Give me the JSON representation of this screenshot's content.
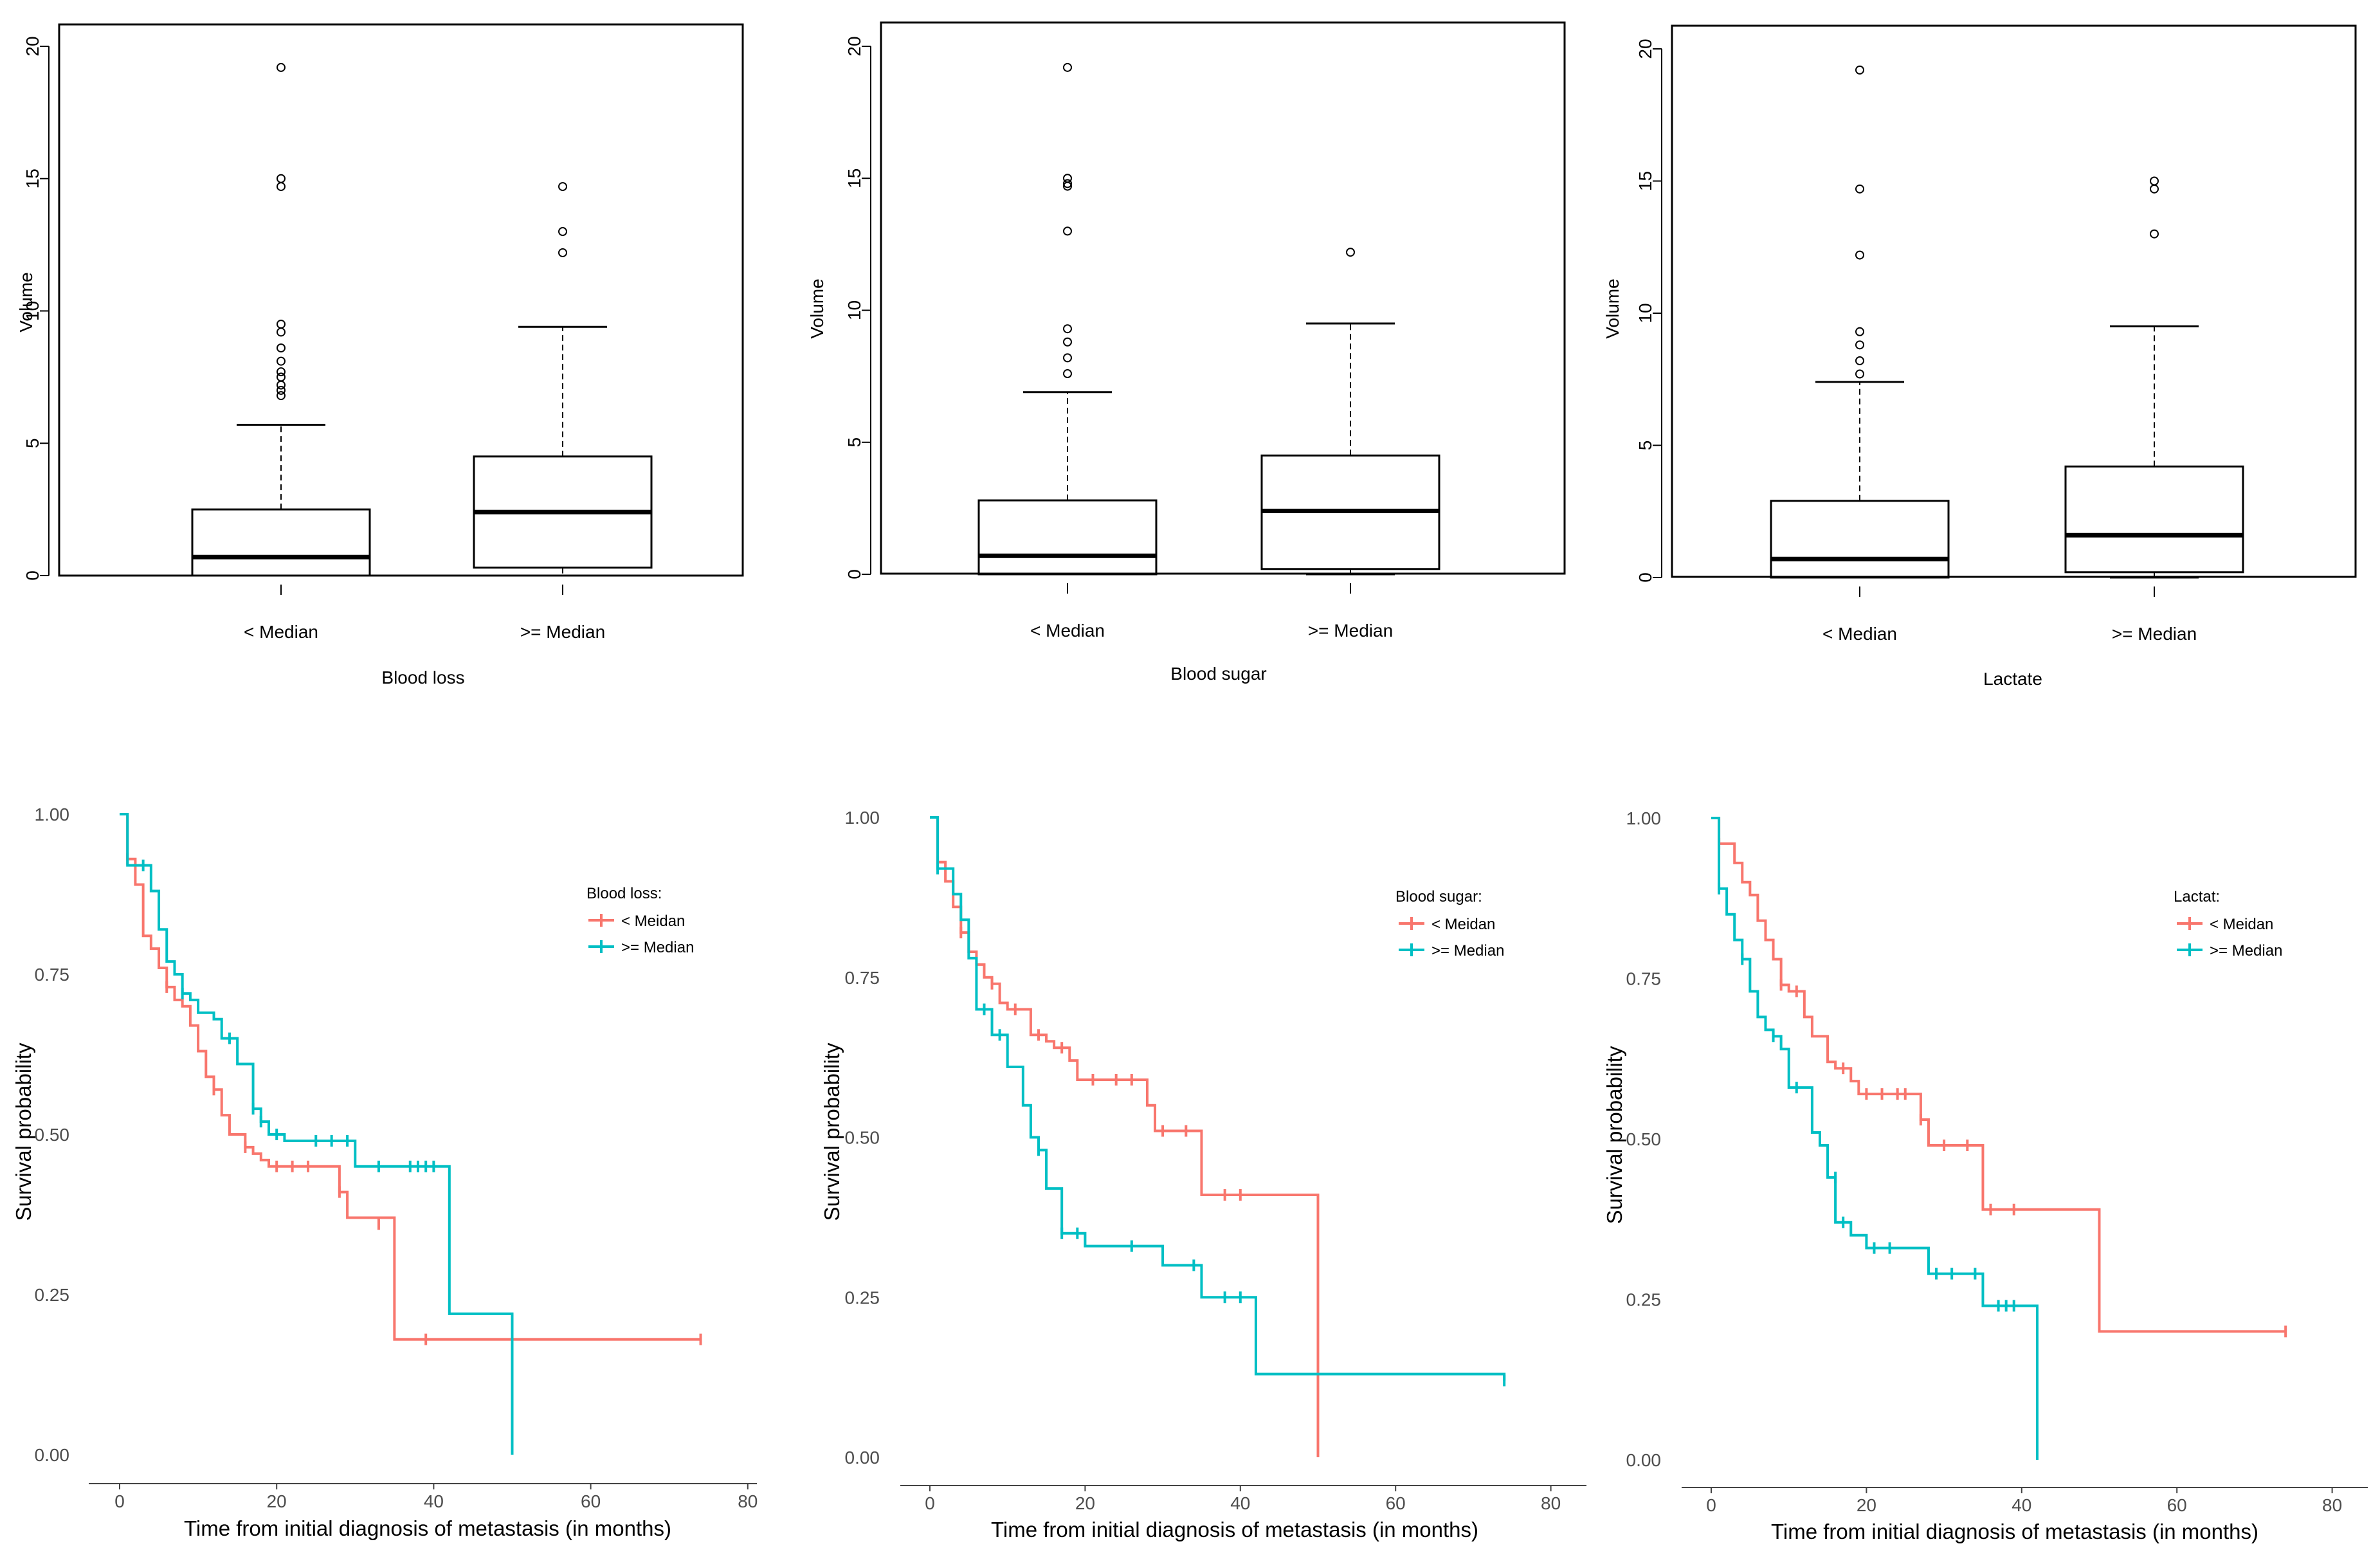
{
  "colors": {
    "red": "#F8766D",
    "cyan": "#00BFC4",
    "box_line": "#000000",
    "km_axis_text": "#4D4D4D"
  },
  "chart_data": [
    {
      "type": "box",
      "ylabel": "Volume",
      "xlabel": "Blood loss",
      "ylim": [
        0,
        20
      ],
      "yticks": [
        0,
        5,
        10,
        15,
        20
      ],
      "categories": [
        "< Median",
        ">= Median"
      ],
      "boxes": [
        {
          "lower_whisker": 0,
          "q1": 0,
          "median": 0.7,
          "q3": 2.5,
          "upper_whisker": 5.7,
          "outliers": [
            6.8,
            7.0,
            7.2,
            7.5,
            7.7,
            8.1,
            8.6,
            9.2,
            9.5,
            14.7,
            15.0,
            19.2
          ]
        },
        {
          "lower_whisker": 0,
          "q1": 0.3,
          "median": 2.4,
          "q3": 4.5,
          "upper_whisker": 9.4,
          "outliers": [
            12.2,
            13.0,
            14.7
          ]
        }
      ]
    },
    {
      "type": "box",
      "ylabel": "Volume",
      "xlabel": "Blood sugar",
      "ylim": [
        0,
        20
      ],
      "yticks": [
        0,
        5,
        10,
        15,
        20
      ],
      "categories": [
        "< Median",
        ">= Median"
      ],
      "boxes": [
        {
          "lower_whisker": 0,
          "q1": 0,
          "median": 0.7,
          "q3": 2.8,
          "upper_whisker": 6.9,
          "outliers": [
            7.6,
            8.2,
            8.8,
            9.3,
            13.0,
            14.7,
            14.8,
            15.0,
            19.2
          ]
        },
        {
          "lower_whisker": 0,
          "q1": 0.2,
          "median": 2.4,
          "q3": 4.5,
          "upper_whisker": 9.5,
          "outliers": [
            12.2
          ]
        }
      ]
    },
    {
      "type": "box",
      "ylabel": "Volume",
      "xlabel": "Lactate",
      "ylim": [
        0,
        20
      ],
      "yticks": [
        0,
        5,
        10,
        15,
        20
      ],
      "categories": [
        "< Median",
        ">= Median"
      ],
      "boxes": [
        {
          "lower_whisker": 0,
          "q1": 0,
          "median": 0.7,
          "q3": 2.9,
          "upper_whisker": 7.4,
          "outliers": [
            7.7,
            8.2,
            8.8,
            9.3,
            12.2,
            14.7,
            19.2
          ]
        },
        {
          "lower_whisker": 0,
          "q1": 0.2,
          "median": 1.6,
          "q3": 4.2,
          "upper_whisker": 9.5,
          "outliers": [
            13.0,
            14.7,
            15.0
          ]
        }
      ]
    },
    {
      "type": "line",
      "subtype": "kaplan-meier",
      "xlabel": "Time from initial diagnosis of metastasis (in months)",
      "ylabel": "Survival probability",
      "xlim": [
        0,
        80
      ],
      "ylim": [
        0,
        1
      ],
      "xticks": [
        0,
        20,
        40,
        60,
        80
      ],
      "yticks": [
        "0.00",
        "0.25",
        "0.50",
        "0.75",
        "1.00"
      ],
      "legend_title": "Blood loss:",
      "legend_position": "right",
      "series": [
        {
          "name": "< Meidan",
          "steps": [
            [
              0,
              1.0
            ],
            [
              1,
              0.93
            ],
            [
              2,
              0.89
            ],
            [
              3,
              0.81
            ],
            [
              4,
              0.79
            ],
            [
              5,
              0.76
            ],
            [
              6,
              0.73
            ],
            [
              7,
              0.71
            ],
            [
              8,
              0.7
            ],
            [
              9,
              0.67
            ],
            [
              10,
              0.63
            ],
            [
              11,
              0.59
            ],
            [
              12,
              0.57
            ],
            [
              13,
              0.53
            ],
            [
              14,
              0.5
            ],
            [
              16,
              0.48
            ],
            [
              17,
              0.47
            ],
            [
              18,
              0.46
            ],
            [
              19,
              0.45
            ],
            [
              28,
              0.41
            ],
            [
              29,
              0.37
            ],
            [
              35,
              0.18
            ],
            [
              74,
              0.18
            ]
          ],
          "censors": [
            [
              1,
              0.93
            ],
            [
              6,
              0.73
            ],
            [
              12,
              0.57
            ],
            [
              16,
              0.48
            ],
            [
              20,
              0.45
            ],
            [
              22,
              0.45
            ],
            [
              24,
              0.45
            ],
            [
              28,
              0.41
            ],
            [
              33,
              0.36
            ],
            [
              39,
              0.18
            ],
            [
              74,
              0.18
            ]
          ]
        },
        {
          "name": ">= Median",
          "steps": [
            [
              0,
              1.0
            ],
            [
              1,
              0.92
            ],
            [
              4,
              0.88
            ],
            [
              5,
              0.82
            ],
            [
              6,
              0.77
            ],
            [
              7,
              0.75
            ],
            [
              8,
              0.72
            ],
            [
              9,
              0.71
            ],
            [
              10,
              0.69
            ],
            [
              12,
              0.68
            ],
            [
              13,
              0.65
            ],
            [
              15,
              0.61
            ],
            [
              17,
              0.54
            ],
            [
              18,
              0.52
            ],
            [
              19,
              0.5
            ],
            [
              21,
              0.49
            ],
            [
              30,
              0.45
            ],
            [
              42,
              0.22
            ],
            [
              50,
              0.0
            ]
          ],
          "censors": [
            [
              3,
              0.92
            ],
            [
              8,
              0.72
            ],
            [
              14,
              0.65
            ],
            [
              17,
              0.54
            ],
            [
              18,
              0.52
            ],
            [
              20,
              0.5
            ],
            [
              25,
              0.49
            ],
            [
              27,
              0.49
            ],
            [
              29,
              0.49
            ],
            [
              33,
              0.45
            ],
            [
              37,
              0.45
            ],
            [
              38,
              0.45
            ],
            [
              39,
              0.45
            ],
            [
              40,
              0.45
            ]
          ]
        }
      ]
    },
    {
      "type": "line",
      "subtype": "kaplan-meier",
      "xlabel": "Time from initial diagnosis of metastasis (in months)",
      "ylabel": "Survival probability",
      "xlim": [
        0,
        80
      ],
      "ylim": [
        0,
        1
      ],
      "xticks": [
        0,
        20,
        40,
        60,
        80
      ],
      "yticks": [
        "0.00",
        "0.25",
        "0.50",
        "0.75",
        "1.00"
      ],
      "legend_title": "Blood sugar:",
      "legend_position": "right",
      "series": [
        {
          "name": "< Meidan",
          "steps": [
            [
              0,
              1.0
            ],
            [
              1,
              0.93
            ],
            [
              2,
              0.9
            ],
            [
              3,
              0.86
            ],
            [
              4,
              0.82
            ],
            [
              5,
              0.79
            ],
            [
              6,
              0.77
            ],
            [
              7,
              0.75
            ],
            [
              8,
              0.74
            ],
            [
              9,
              0.71
            ],
            [
              10,
              0.7
            ],
            [
              13,
              0.66
            ],
            [
              15,
              0.65
            ],
            [
              16,
              0.64
            ],
            [
              18,
              0.62
            ],
            [
              19,
              0.59
            ],
            [
              28,
              0.55
            ],
            [
              29,
              0.51
            ],
            [
              35,
              0.41
            ],
            [
              50,
              0.0
            ]
          ],
          "censors": [
            [
              1,
              0.93
            ],
            [
              4,
              0.82
            ],
            [
              8,
              0.74
            ],
            [
              11,
              0.7
            ],
            [
              14,
              0.66
            ],
            [
              17,
              0.64
            ],
            [
              21,
              0.59
            ],
            [
              24,
              0.59
            ],
            [
              26,
              0.59
            ],
            [
              30,
              0.51
            ],
            [
              33,
              0.51
            ],
            [
              38,
              0.41
            ],
            [
              40,
              0.41
            ]
          ]
        },
        {
          "name": ">= Median",
          "steps": [
            [
              0,
              1.0
            ],
            [
              1,
              0.92
            ],
            [
              3,
              0.88
            ],
            [
              4,
              0.84
            ],
            [
              5,
              0.78
            ],
            [
              6,
              0.7
            ],
            [
              8,
              0.66
            ],
            [
              10,
              0.61
            ],
            [
              12,
              0.55
            ],
            [
              13,
              0.5
            ],
            [
              14,
              0.48
            ],
            [
              15,
              0.42
            ],
            [
              17,
              0.35
            ],
            [
              20,
              0.33
            ],
            [
              30,
              0.3
            ],
            [
              35,
              0.25
            ],
            [
              42,
              0.13
            ],
            [
              74,
              0.12
            ]
          ],
          "censors": [
            [
              1,
              0.92
            ],
            [
              7,
              0.7
            ],
            [
              9,
              0.66
            ],
            [
              14,
              0.48
            ],
            [
              17,
              0.35
            ],
            [
              19,
              0.35
            ],
            [
              26,
              0.33
            ],
            [
              34,
              0.3
            ],
            [
              38,
              0.25
            ],
            [
              40,
              0.25
            ],
            [
              74,
              0.12
            ]
          ]
        }
      ]
    },
    {
      "type": "line",
      "subtype": "kaplan-meier",
      "xlabel": "Time from initial diagnosis of metastasis (in months)",
      "ylabel": "Survival probability",
      "xlim": [
        0,
        80
      ],
      "ylim": [
        0,
        1
      ],
      "xticks": [
        0,
        20,
        40,
        60,
        80
      ],
      "yticks": [
        "0.00",
        "0.25",
        "0.50",
        "0.75",
        "1.00"
      ],
      "legend_title": "Lactat:",
      "legend_position": "right",
      "series": [
        {
          "name": "< Meidan",
          "steps": [
            [
              0,
              1.0
            ],
            [
              1,
              0.96
            ],
            [
              3,
              0.93
            ],
            [
              4,
              0.9
            ],
            [
              5,
              0.88
            ],
            [
              6,
              0.84
            ],
            [
              7,
              0.81
            ],
            [
              8,
              0.78
            ],
            [
              9,
              0.74
            ],
            [
              10,
              0.73
            ],
            [
              12,
              0.69
            ],
            [
              13,
              0.66
            ],
            [
              15,
              0.62
            ],
            [
              16,
              0.61
            ],
            [
              18,
              0.59
            ],
            [
              19,
              0.57
            ],
            [
              27,
              0.53
            ],
            [
              28,
              0.49
            ],
            [
              35,
              0.39
            ],
            [
              50,
              0.2
            ],
            [
              74,
              0.2
            ]
          ],
          "censors": [
            [
              1,
              0.96
            ],
            [
              9,
              0.74
            ],
            [
              11,
              0.73
            ],
            [
              17,
              0.61
            ],
            [
              20,
              0.57
            ],
            [
              22,
              0.57
            ],
            [
              24,
              0.57
            ],
            [
              25,
              0.57
            ],
            [
              27,
              0.53
            ],
            [
              30,
              0.49
            ],
            [
              33,
              0.49
            ],
            [
              36,
              0.39
            ],
            [
              39,
              0.39
            ],
            [
              74,
              0.2
            ]
          ]
        },
        {
          "name": ">= Median",
          "steps": [
            [
              0,
              1.0
            ],
            [
              1,
              0.89
            ],
            [
              2,
              0.85
            ],
            [
              3,
              0.81
            ],
            [
              4,
              0.78
            ],
            [
              5,
              0.73
            ],
            [
              6,
              0.69
            ],
            [
              7,
              0.67
            ],
            [
              8,
              0.66
            ],
            [
              9,
              0.64
            ],
            [
              10,
              0.58
            ],
            [
              13,
              0.51
            ],
            [
              14,
              0.49
            ],
            [
              15,
              0.44
            ],
            [
              16,
              0.37
            ],
            [
              18,
              0.35
            ],
            [
              20,
              0.33
            ],
            [
              28,
              0.29
            ],
            [
              35,
              0.24
            ],
            [
              42,
              0.0
            ]
          ],
          "censors": [
            [
              1,
              0.89
            ],
            [
              4,
              0.78
            ],
            [
              8,
              0.66
            ],
            [
              11,
              0.58
            ],
            [
              16,
              0.44
            ],
            [
              17,
              0.37
            ],
            [
              21,
              0.33
            ],
            [
              23,
              0.33
            ],
            [
              29,
              0.29
            ],
            [
              31,
              0.29
            ],
            [
              34,
              0.29
            ],
            [
              37,
              0.24
            ],
            [
              38,
              0.24
            ],
            [
              39,
              0.24
            ]
          ]
        }
      ]
    }
  ]
}
